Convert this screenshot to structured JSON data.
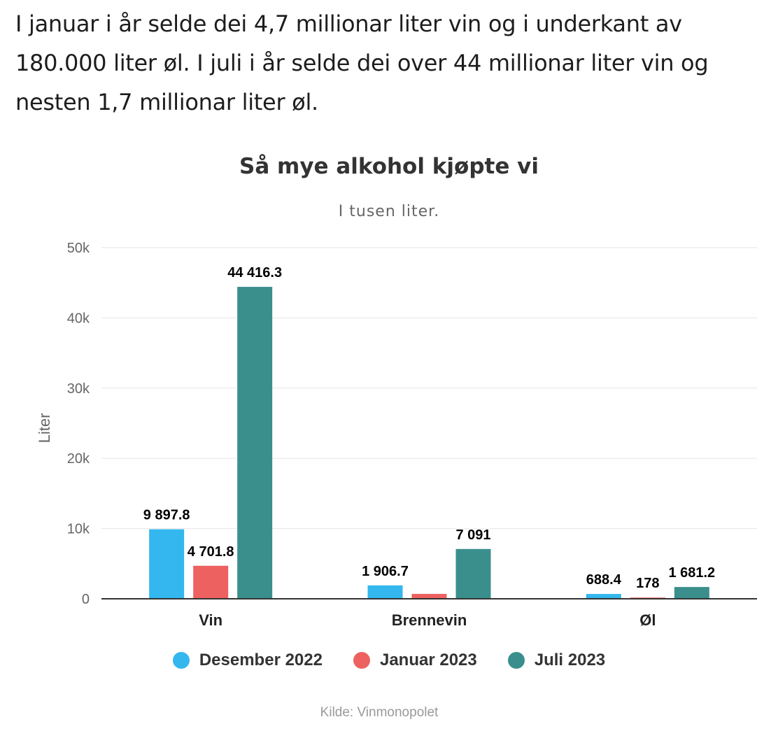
{
  "intro_text": "I januar i år selde dei 4,7 millionar liter vin og i underkant av 180.000 liter øl. I juli i år selde dei over 44 millionar liter vin og nesten 1,7 millionar liter øl.",
  "chart_data": {
    "type": "bar",
    "title": "Så mye alkohol kjøpte vi",
    "subtitle": "I tusen liter.",
    "xlabel": "",
    "ylabel": "Liter",
    "ylim": [
      0,
      50000
    ],
    "yticks": [
      0,
      10000,
      20000,
      30000,
      40000,
      50000
    ],
    "ytick_labels": [
      "0",
      "10k",
      "20k",
      "30k",
      "40k",
      "50k"
    ],
    "categories": [
      "Vin",
      "Brennevin",
      "Øl"
    ],
    "series": [
      {
        "name": "Desember 2022",
        "color": "#33b7ee",
        "values": [
          9897.8,
          1906.7,
          688.4
        ],
        "labels": [
          "9 897.8",
          "1 906.7",
          "688.4"
        ]
      },
      {
        "name": "Januar 2023",
        "color": "#ee6161",
        "values": [
          4701.8,
          700,
          178
        ],
        "labels": [
          "4 701.8",
          "",
          "178"
        ]
      },
      {
        "name": "Juli 2023",
        "color": "#3a8f8d",
        "values": [
          44416.3,
          7091,
          1681.2
        ],
        "labels": [
          "44 416.3",
          "7 091",
          "1 681.2"
        ]
      }
    ],
    "grid": true,
    "legend_position": "bottom-center",
    "credit": "Kilde: Vinmonopolet"
  }
}
